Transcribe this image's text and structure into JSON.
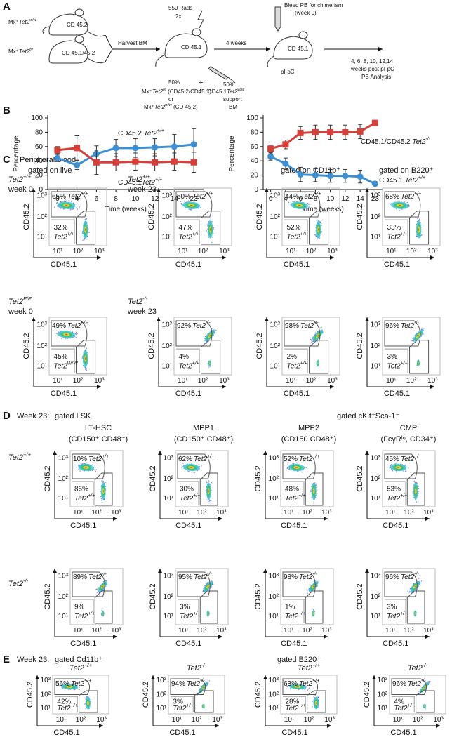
{
  "panel_labels": [
    "A",
    "B",
    "C",
    "D",
    "E"
  ],
  "panel_a": {
    "donor1": "Mx⁺Tet2w/w",
    "donor1_cd": "CD 45.2",
    "donor2": "Mx⁺Tet2f/f",
    "donor2_cd": "CD 45.1/45.2",
    "harvest": "Harvest BM",
    "rads": "550 Rads",
    "times": "2x",
    "recipient_cd": "CD 45.1",
    "pct1": "50%",
    "plus": "+",
    "pct2": "50%",
    "mix1": "Mx⁺Tet2f/f (CD45.2/CD45.1)",
    "or": "or",
    "mix2": "Mx⁺Tet2w/w (CD 45.2)",
    "support1": "CD45.1Tet2w/w",
    "support2": "support",
    "support3": "BM",
    "wait": "4 weeks",
    "bleed1": "Bleed PB for chimerism",
    "bleed2": "(week 0)",
    "chim_cd": "CD 45.1",
    "pipc": "pI-pC",
    "analysis1": "4, 6, 8, 10, 12,14",
    "analysis2": "weeks post pI-pC",
    "analysis3": "PB Analysis"
  },
  "chart_data": [
    {
      "type": "line",
      "xlabel": "Time (weeks)",
      "ylabel": "Percentage",
      "categories": [
        "0",
        "4",
        "6",
        "8",
        "10",
        "12",
        "14",
        "23"
      ],
      "ylim": [
        0,
        100
      ],
      "yticks": [
        0,
        20,
        40,
        60,
        80,
        100
      ],
      "series": [
        {
          "name": "CD45.2 Tet2+/+",
          "color": "#3d8fd1",
          "marker": "circle",
          "values": [
            44,
            34,
            50,
            58,
            58,
            59,
            60,
            63
          ],
          "errors": [
            5,
            6,
            11,
            12,
            13,
            12,
            17,
            22
          ]
        },
        {
          "name": "CD45.1Tet2+/+",
          "color": "#d6403a",
          "marker": "square",
          "values": [
            55,
            58,
            38,
            38,
            39,
            38,
            39,
            38
          ],
          "errors": [
            5,
            17,
            17,
            12,
            12,
            12,
            12,
            14
          ]
        }
      ]
    },
    {
      "type": "line",
      "xlabel": "Time (weeks)",
      "ylabel": "Percentage",
      "categories": [
        "0",
        "4",
        "6",
        "8",
        "10",
        "12",
        "14",
        "23"
      ],
      "ylim": [
        0,
        100
      ],
      "yticks": [
        0,
        20,
        40,
        60,
        80,
        100
      ],
      "series": [
        {
          "name": "CD45.1/CD45.2 Tet2-/-",
          "color": "#d6403a",
          "marker": "square",
          "values": [
            57,
            63,
            79,
            80,
            80,
            80,
            81,
            93
          ],
          "errors": [
            5,
            6,
            9,
            10,
            10,
            10,
            10,
            3
          ]
        },
        {
          "name": "CD45.1 Tet2+/+",
          "color": "#3d8fd1",
          "marker": "circle",
          "values": [
            46,
            36,
            21,
            20,
            19,
            19,
            18,
            8
          ],
          "errors": [
            5,
            8,
            10,
            9,
            9,
            9,
            9,
            3
          ]
        }
      ]
    }
  ],
  "panel_c": {
    "title": "Peripheral blood:",
    "gate_live": "gated on live",
    "gate_cd11b": "gated on CD11b⁺",
    "gate_b220": "gated on B220⁺"
  },
  "panel_d": {
    "week": "Week 23:",
    "gate_lsk": "gated LSK",
    "gate_ckit": "gated cKit⁺Sca-1⁻",
    "columns": [
      [
        "LT-HSC",
        "(CD150⁺ CD48⁻)"
      ],
      [
        "MPP1",
        "(CD150⁺ CD48⁺)"
      ],
      [
        "MPP2",
        "(CD150 CD48⁺)"
      ],
      [
        "CMP",
        "(FcγRˡᵒ, CD34⁺)"
      ]
    ]
  },
  "panel_e": {
    "week": "Week 23:",
    "gate_cd11b": "gated Cd11b⁺",
    "gate_b220": "gated B220⁺"
  },
  "flow": {
    "axes": {
      "x": "CD45.1",
      "y": "CD45.2",
      "ticks": [
        "10¹",
        "10²",
        "10³"
      ]
    },
    "rows": [
      {
        "labels": [
          [
            "Tet2+/+",
            "week 0"
          ],
          [
            "Tet2+/+",
            "week 23"
          ]
        ],
        "plots": [
          {
            "top": [
              "65%",
              "Tet2+/+"
            ],
            "bottom": [
              "32%",
              "Tet2+/+"
            ]
          },
          {
            "top": [
              "50%",
              "Tet2+/+"
            ],
            "bottom": [
              "47%",
              "Tet2+/+"
            ]
          },
          {
            "top": [
              "44%",
              "Tet2+/+"
            ],
            "bottom": [
              "52%",
              "Tet2+/+"
            ]
          },
          {
            "top": [
              "68%",
              "Tet2+/+"
            ],
            "bottom": [
              "33%",
              "Tet2+/+"
            ]
          }
        ]
      },
      {
        "labels": [
          [
            "Tet2F/F",
            "week 0"
          ],
          [
            "Tet2-/-",
            "week 23"
          ]
        ],
        "plots": [
          {
            "top": [
              "49%",
              "Tet2F/F"
            ],
            "bottom": [
              "45%",
              "Tet2W/W"
            ]
          },
          {
            "top": [
              "92%",
              "Tet2-/-"
            ],
            "bottom": [
              "4%",
              "Tet2+/+"
            ]
          },
          {
            "top": [
              "98%",
              "Tet2-/-"
            ],
            "bottom": [
              "2%",
              "Tet2+/+"
            ]
          },
          {
            "top": [
              "96%",
              "Tet2-/-"
            ],
            "bottom": [
              "3%",
              "Tet2+/+"
            ]
          }
        ]
      },
      {
        "labels": [
          [
            "Tet2+/+"
          ]
        ],
        "plots": [
          {
            "top": [
              "10%",
              "Tet2+/+"
            ],
            "bottom": [
              "86%",
              "Tet2+/+"
            ]
          },
          {
            "top": [
              "62%",
              "Tet2+/+"
            ],
            "bottom": [
              "30%",
              "Tet2+/+"
            ]
          },
          {
            "top": [
              "52%",
              "Tet2+/+"
            ],
            "bottom": [
              "48%",
              "Tet2+/+"
            ]
          },
          {
            "top": [
              "45%",
              "Tet2+/+"
            ],
            "bottom": [
              "53%",
              "Tet2+/+"
            ]
          }
        ]
      },
      {
        "labels": [
          [
            "Tet2-/-"
          ]
        ],
        "plots": [
          {
            "top": [
              "89%",
              "Tet2-/-"
            ],
            "bottom": [
              "9%",
              "Tet2+/+"
            ]
          },
          {
            "top": [
              "95%",
              "Tet2-/-"
            ],
            "bottom": [
              "3%",
              "Tet2+/+"
            ]
          },
          {
            "top": [
              "98%",
              "Tet2-/-"
            ],
            "bottom": [
              "1%",
              "Tet2+/+"
            ]
          },
          {
            "top": [
              "96%",
              "Tet2-/-"
            ],
            "bottom": [
              "3%",
              "Tet2+/+"
            ]
          }
        ]
      },
      {
        "plots": [
          {
            "title": "Tet2+/+",
            "top": [
              "56%",
              "Tet2+/+"
            ],
            "bottom": [
              "42%",
              "Tet2+/+"
            ]
          },
          {
            "title": "Tet2-/-",
            "top": [
              "94%",
              "Tet2-/-"
            ],
            "bottom": [
              "3%",
              "Tet2+/+"
            ]
          },
          {
            "title": "Tet2+/+",
            "top": [
              "63%",
              "Tet2+/+"
            ],
            "bottom": [
              "28%",
              "Tet2+/+"
            ]
          },
          {
            "title": "Tet2-/-",
            "top": [
              "96%",
              "Tet2-/-"
            ],
            "bottom": [
              "4%",
              "Tet2+/+"
            ]
          }
        ]
      }
    ]
  }
}
